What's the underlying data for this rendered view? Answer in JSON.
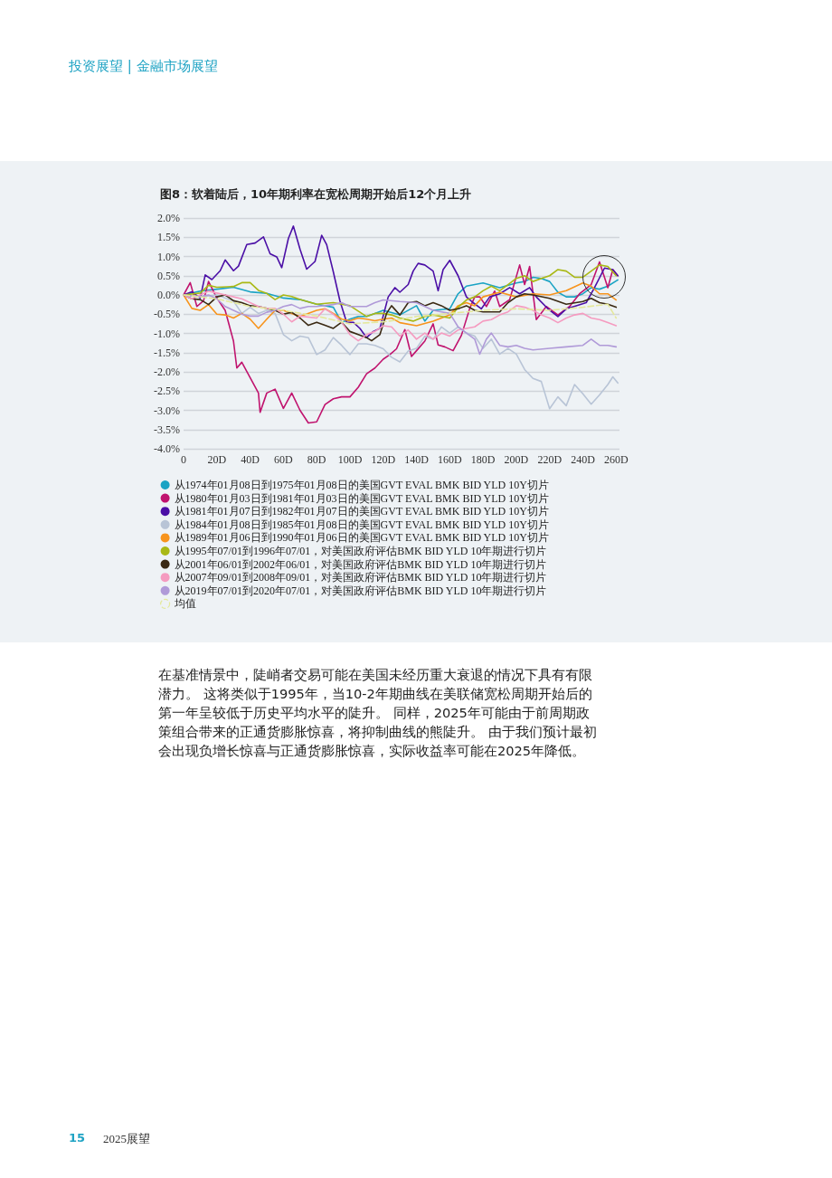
{
  "chart_data": {
    "type": "line",
    "title": "图8：软着陆后，10年期利率在宽松周期开始后12个月上升",
    "annotations": [
      "投资展望 | 金融市场展望",
      "在基准情景中，陡峭者交易可能在美国未经历重大衰退的情况下具有有限潜力。 这将类似于1995年，当10-2年期曲线在美联储宽松周期开始后的第一年呈较低于历史平均水平的陡升。 同样，2025年可能由于前周期政策组合带来的正通货膨胀惊喜，将抑制曲线的熊陡升。 由于我们预计最初会出现负增长惊喜与正通货膨胀惊喜，实际收益率可能在2025年降低。",
      "15",
      "2025展望"
    ],
    "xlim": [
      0,
      262
    ],
    "xticks": [
      0,
      {
        "value": 20,
        "label": "20D"
      },
      {
        "value": 40,
        "label": "40D"
      },
      {
        "value": 60,
        "label": "60D"
      },
      {
        "value": 80,
        "label": "80D"
      },
      {
        "value": 100,
        "label": "100D"
      },
      {
        "value": 120,
        "label": "120D"
      },
      {
        "value": 140,
        "label": "140D"
      },
      {
        "value": 160,
        "label": "160D"
      },
      {
        "value": 180,
        "label": "180D"
      },
      {
        "value": 200,
        "label": "200D"
      },
      {
        "value": 220,
        "label": "220D"
      },
      {
        "value": 240,
        "label": "240D"
      },
      {
        "value": 260,
        "label": "260D"
      }
    ],
    "ylim": [
      -4,
      2
    ],
    "yticks": [
      {
        "value": -4,
        "label": "-4.0%"
      },
      {
        "value": -3.5,
        "label": "-3.5%"
      },
      {
        "value": -3,
        "label": "-3.0%"
      },
      {
        "value": -2.5,
        "label": "-2.5%"
      },
      {
        "value": -2,
        "label": "-2.0%"
      },
      {
        "value": -1.5,
        "label": "-1.5%"
      },
      {
        "value": -1,
        "label": "-1.0%"
      },
      {
        "value": -0.5,
        "label": "-0.5%"
      },
      {
        "value": 0,
        "label": "0.0%"
      },
      {
        "value": 0.5,
        "label": "0.5%"
      },
      {
        "value": 1,
        "label": "1.0%"
      },
      {
        "value": 1.5,
        "label": "1.5%"
      },
      {
        "value": 2,
        "label": "2.0%"
      }
    ],
    "grid": "y",
    "legend": "bottom",
    "marker": "none",
    "series": [
      {
        "name": "从1974年01月08日到1975年01月08日的美国GVT EVAL BMK BID YLD 10Y切片",
        "color": "#1aa3c4",
        "x": [
          0,
          5,
          10,
          20,
          30,
          40,
          50,
          60,
          70,
          80,
          90,
          95,
          100,
          105,
          110,
          115,
          120,
          130,
          140,
          145,
          150,
          160,
          165,
          170,
          180,
          190,
          200,
          205,
          210,
          215,
          220,
          225,
          230,
          235,
          240,
          245,
          250,
          255,
          261
        ],
        "values": [
          0,
          0.05,
          0.1,
          0.15,
          0.2,
          0.08,
          0.04,
          -0.08,
          -0.12,
          -0.24,
          -0.32,
          -0.71,
          -0.63,
          -0.56,
          -0.56,
          -0.48,
          -0.4,
          -0.52,
          -0.28,
          -0.68,
          -0.4,
          -0.36,
          0.03,
          0.23,
          0.31,
          0.19,
          0.31,
          0.35,
          0.46,
          0.43,
          0.35,
          0.07,
          -0.05,
          -0.05,
          0.03,
          0.19,
          0.15,
          0.23,
          0.39
        ]
      },
      {
        "name": "从1980年01月03日到1981年01月03日的美国GVT EVAL BMK BID YLD 10Y切片",
        "color": "#c0136e",
        "x": [
          0,
          4,
          8,
          12,
          15,
          20,
          25,
          30,
          32,
          35,
          40,
          45,
          46,
          50,
          55,
          60,
          65,
          70,
          75,
          80,
          85,
          90,
          95,
          100,
          105,
          110,
          115,
          120,
          124,
          128,
          133,
          137,
          140,
          145,
          150,
          153,
          157,
          162,
          167,
          172,
          175,
          178,
          182,
          187,
          190,
          196,
          202,
          205,
          208,
          212,
          218,
          225,
          232,
          238,
          245,
          250,
          255,
          258,
          261
        ],
        "values": [
          0,
          0.32,
          -0.3,
          -0.15,
          0.35,
          -0.08,
          -0.4,
          -1.2,
          -1.9,
          -1.75,
          -2.15,
          -2.55,
          -3.05,
          -2.55,
          -2.45,
          -2.95,
          -2.55,
          -3.0,
          -3.33,
          -3.3,
          -2.85,
          -2.7,
          -2.65,
          -2.65,
          -2.4,
          -2.05,
          -1.9,
          -1.67,
          -1.55,
          -1.4,
          -0.9,
          -1.6,
          -1.45,
          -1.2,
          -0.75,
          -1.3,
          -1.35,
          -1.45,
          -1.05,
          -0.35,
          -0.05,
          -0.05,
          -0.3,
          0.1,
          -0.3,
          -0.12,
          0.78,
          0.27,
          0.74,
          -0.64,
          -0.3,
          -0.52,
          -0.3,
          0.03,
          0.27,
          0.86,
          0.19,
          0.66,
          0.5
        ]
      },
      {
        "name": "从1981年01月07日到1982年01月07日的美国GVT EVAL BMK BID YLD 10Y切片",
        "color": "#4b0fa6",
        "x": [
          0,
          5,
          10,
          13,
          17,
          22,
          25,
          30,
          33,
          38,
          43,
          48,
          52,
          56,
          59,
          63,
          66,
          70,
          74,
          79,
          83,
          86,
          90,
          94,
          98,
          102,
          106,
          110,
          114,
          118,
          123,
          127,
          130,
          135,
          138,
          141,
          145,
          150,
          153,
          156,
          160,
          165,
          170,
          174,
          179,
          184,
          190,
          196,
          202,
          208,
          212,
          219,
          225,
          230,
          236,
          242,
          247,
          253,
          258,
          261
        ],
        "values": [
          0,
          0.08,
          -0.08,
          0.52,
          0.4,
          0.63,
          0.91,
          0.63,
          0.75,
          1.31,
          1.35,
          1.51,
          1.07,
          0.99,
          0.71,
          1.47,
          1.79,
          1.19,
          0.67,
          0.87,
          1.55,
          1.31,
          0.6,
          -0.16,
          -0.71,
          -0.71,
          -0.87,
          -1.11,
          -0.95,
          -0.87,
          -0.05,
          0.19,
          0.07,
          0.27,
          0.62,
          0.82,
          0.78,
          0.62,
          0.11,
          0.66,
          0.9,
          0.5,
          -0.05,
          -0.2,
          -0.36,
          -0.05,
          0.03,
          0.19,
          0.03,
          0.19,
          -0.05,
          -0.36,
          -0.56,
          -0.36,
          -0.28,
          -0.2,
          0.19,
          0.7,
          0.66,
          0.5
        ]
      },
      {
        "name": "从1984年01月08日到1985年01月08日的美国GVT EVAL BMK BID YLD 10Y切片",
        "color": "#b8c4d6",
        "x": [
          0,
          10,
          20,
          30,
          35,
          40,
          45,
          50,
          55,
          60,
          65,
          70,
          75,
          80,
          85,
          90,
          95,
          100,
          105,
          110,
          115,
          120,
          125,
          130,
          135,
          140,
          145,
          150,
          155,
          160,
          165,
          170,
          175,
          180,
          185,
          190,
          195,
          200,
          205,
          210,
          215,
          220,
          225,
          230,
          235,
          240,
          245,
          250,
          255,
          258,
          261
        ],
        "values": [
          0,
          -0.05,
          0,
          -0.16,
          -0.48,
          -0.32,
          -0.48,
          -0.4,
          -0.48,
          -1.03,
          -1.19,
          -1.07,
          -1.11,
          -1.55,
          -1.43,
          -1.11,
          -1.31,
          -1.55,
          -1.27,
          -1.27,
          -1.31,
          -1.4,
          -1.62,
          -1.74,
          -1.46,
          -1.39,
          -1.07,
          -1.15,
          -0.83,
          -0.99,
          -0.83,
          -0.99,
          -1.07,
          -1.39,
          -1.15,
          -1.54,
          -1.39,
          -1.54,
          -1.94,
          -2.17,
          -2.25,
          -2.96,
          -2.65,
          -2.88,
          -2.33,
          -2.57,
          -2.84,
          -2.6,
          -2.33,
          -2.13,
          -2.29
        ]
      },
      {
        "name": "从1989年01月06日到1990年01月06日的美国GVT EVAL BMK BID YLD 10Y切片",
        "color": "#f7941d",
        "x": [
          0,
          5,
          10,
          15,
          20,
          25,
          30,
          35,
          40,
          45,
          50,
          55,
          60,
          65,
          70,
          80,
          85,
          90,
          95,
          100,
          105,
          110,
          115,
          120,
          125,
          130,
          140,
          150,
          160,
          165,
          170,
          175,
          180,
          190,
          200,
          210,
          220,
          230,
          240,
          245,
          250,
          255,
          260
        ],
        "values": [
          0,
          -0.35,
          -0.4,
          -0.25,
          -0.5,
          -0.52,
          -0.6,
          -0.48,
          -0.63,
          -0.87,
          -0.63,
          -0.4,
          -0.4,
          -0.48,
          -0.56,
          -0.4,
          -0.36,
          -0.48,
          -0.63,
          -0.67,
          -0.6,
          -0.63,
          -0.67,
          -0.63,
          -0.6,
          -0.72,
          -0.8,
          -0.68,
          -0.52,
          -0.28,
          -0.2,
          -0.28,
          -0.05,
          0.07,
          -0.05,
          0.03,
          0,
          0.11,
          0.31,
          0.23,
          0.03,
          0.03,
          -0.13
        ]
      },
      {
        "name": "从1995年07/01到1996年07/01，对美国政府评估BMK BID YLD 10年期进行切片",
        "color": "#a9b815",
        "x": [
          0,
          10,
          15,
          20,
          30,
          35,
          40,
          45,
          50,
          55,
          60,
          65,
          70,
          80,
          90,
          100,
          110,
          115,
          120,
          125,
          130,
          138,
          145,
          150,
          155,
          160,
          165,
          170,
          175,
          180,
          185,
          190,
          195,
          200,
          205,
          210,
          215,
          220,
          225,
          230,
          235,
          240,
          245,
          250,
          255,
          260
        ],
        "values": [
          0,
          0.05,
          0.25,
          0.2,
          0.22,
          0.32,
          0.32,
          0.12,
          0.04,
          -0.12,
          0,
          -0.04,
          -0.12,
          -0.24,
          -0.2,
          -0.28,
          -0.56,
          -0.48,
          -0.48,
          -0.52,
          -0.6,
          -0.68,
          -0.56,
          -0.52,
          -0.56,
          -0.6,
          -0.32,
          -0.13,
          -0.05,
          0.11,
          0.23,
          0.11,
          0.27,
          0.43,
          0.5,
          0.35,
          0.43,
          0.5,
          0.66,
          0.62,
          0.46,
          0.46,
          0.62,
          0.78,
          0.74,
          0.5
        ]
      },
      {
        "name": "从2001年06/01到2002年06/01，对美国政府评估BMK BID YLD 10年期进行切片",
        "color": "#3b2a14",
        "x": [
          0,
          5,
          10,
          15,
          20,
          25,
          30,
          35,
          40,
          45,
          50,
          55,
          60,
          65,
          70,
          75,
          80,
          85,
          90,
          95,
          100,
          105,
          110,
          113,
          118,
          122,
          125,
          130,
          135,
          140,
          145,
          150,
          155,
          160,
          165,
          170,
          175,
          180,
          190,
          195,
          200,
          205,
          210,
          220,
          230,
          240,
          245,
          250,
          255,
          260
        ],
        "values": [
          0,
          -0.1,
          -0.12,
          -0.25,
          -0.05,
          0,
          -0.15,
          -0.2,
          -0.28,
          -0.3,
          -0.35,
          -0.4,
          -0.5,
          -0.45,
          -0.6,
          -0.79,
          -0.71,
          -0.79,
          -0.87,
          -0.71,
          -0.95,
          -1.03,
          -1.11,
          -1.19,
          -1.03,
          -0.48,
          -0.28,
          -0.52,
          -0.2,
          -0.17,
          -0.28,
          -0.2,
          -0.28,
          -0.4,
          -0.36,
          -0.28,
          -0.4,
          -0.44,
          -0.44,
          -0.2,
          -0.05,
          0.03,
          0,
          -0.09,
          -0.24,
          -0.17,
          -0.09,
          -0.2,
          -0.24,
          -0.32
        ]
      },
      {
        "name": "从2007年09/01到2008年09/01，对美国政府评估BMK BID YLD 10年期进行切片",
        "color": "#f59bc0",
        "x": [
          0,
          5,
          10,
          15,
          20,
          25,
          30,
          35,
          40,
          45,
          50,
          55,
          60,
          65,
          70,
          80,
          85,
          90,
          95,
          100,
          105,
          110,
          115,
          120,
          125,
          130,
          135,
          140,
          145,
          150,
          155,
          160,
          165,
          170,
          175,
          180,
          185,
          190,
          195,
          200,
          205,
          210,
          215,
          220,
          225,
          230,
          235,
          240,
          245,
          250,
          255,
          260
        ],
        "values": [
          0,
          -0.1,
          0,
          0.1,
          0.05,
          0,
          -0.05,
          -0.1,
          -0.2,
          -0.3,
          -0.35,
          -0.35,
          -0.5,
          -0.7,
          -0.55,
          -0.6,
          -0.36,
          -0.5,
          -0.71,
          -1.03,
          -1.19,
          -1.03,
          -0.95,
          -0.8,
          -0.83,
          -1.07,
          -0.91,
          -1.15,
          -0.99,
          -1.15,
          -0.99,
          -1.07,
          -0.91,
          -0.87,
          -0.83,
          -0.68,
          -0.64,
          -0.52,
          -0.44,
          -0.28,
          -0.32,
          -0.4,
          -0.52,
          -0.6,
          -0.72,
          -0.6,
          -0.52,
          -0.48,
          -0.6,
          -0.64,
          -0.72,
          -0.8
        ]
      },
      {
        "name": "从2019年07/01到2020年07/01，对美国政府评估BMK BID YLD 10年期进行切片",
        "color": "#b09ad8",
        "x": [
          0,
          10,
          15,
          20,
          25,
          30,
          35,
          40,
          45,
          50,
          55,
          60,
          65,
          70,
          75,
          80,
          90,
          95,
          100,
          110,
          115,
          120,
          130,
          140,
          150,
          160,
          165,
          170,
          175,
          178,
          182,
          185,
          190,
          195,
          200,
          205,
          210,
          220,
          230,
          240,
          245,
          250,
          255,
          260
        ],
        "values": [
          0,
          -0.05,
          0,
          -0.1,
          -0.3,
          -0.4,
          -0.5,
          -0.55,
          -0.55,
          -0.45,
          -0.4,
          -0.3,
          -0.25,
          -0.35,
          -0.3,
          -0.3,
          -0.25,
          -0.2,
          -0.3,
          -0.3,
          -0.2,
          -0.13,
          -0.17,
          -0.2,
          -0.4,
          -0.48,
          -0.83,
          -0.99,
          -1.15,
          -1.54,
          -1.15,
          -0.99,
          -1.31,
          -1.35,
          -1.31,
          -1.39,
          -1.43,
          -1.39,
          -1.35,
          -1.31,
          -1.15,
          -1.31,
          -1.31,
          -1.35
        ]
      },
      {
        "name": "均值",
        "color": "#e4e89c",
        "line_style": "dashed",
        "x": [
          0,
          20,
          40,
          60,
          80,
          100,
          120,
          130,
          140,
          160,
          180,
          200,
          220,
          240,
          255,
          260
        ],
        "values": [
          0,
          -0.1,
          -0.3,
          -0.4,
          -0.55,
          -0.75,
          -0.7,
          -0.64,
          -0.56,
          -0.48,
          -0.4,
          -0.36,
          -0.4,
          -0.32,
          -0.24,
          -0.6
        ]
      }
    ]
  }
}
